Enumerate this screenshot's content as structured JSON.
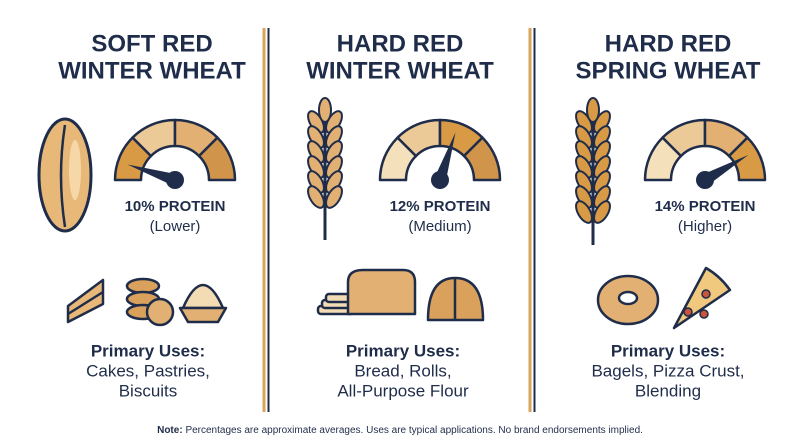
{
  "columns": [
    {
      "title": [
        "SOFT RED",
        "WINTER WHEAT"
      ],
      "protein": "10% PROTEIN",
      "level": "(Lower)",
      "uses_heading": "Primary Uses:",
      "uses": [
        "Cakes, Pastries,",
        "Biscuits"
      ]
    },
    {
      "title": [
        "HARD RED",
        "WINTER WHEAT"
      ],
      "protein": "12% PROTEIN",
      "level": "(Medium)",
      "uses_heading": "Primary Uses:",
      "uses": [
        "Bread, Rolls,",
        "All-Purpose Flour"
      ]
    },
    {
      "title": [
        "HARD RED",
        "SPRING WHEAT"
      ],
      "protein": "14% PROTEIN",
      "level": "(Higher)",
      "uses_heading": "Primary Uses:",
      "uses": [
        "Bagels, Pizza Crust,",
        "Blending"
      ]
    }
  ],
  "note": {
    "label": "Note:",
    "text": "Percentages are approximate averages. Uses are typical applications. No brand endorsements implied."
  }
}
